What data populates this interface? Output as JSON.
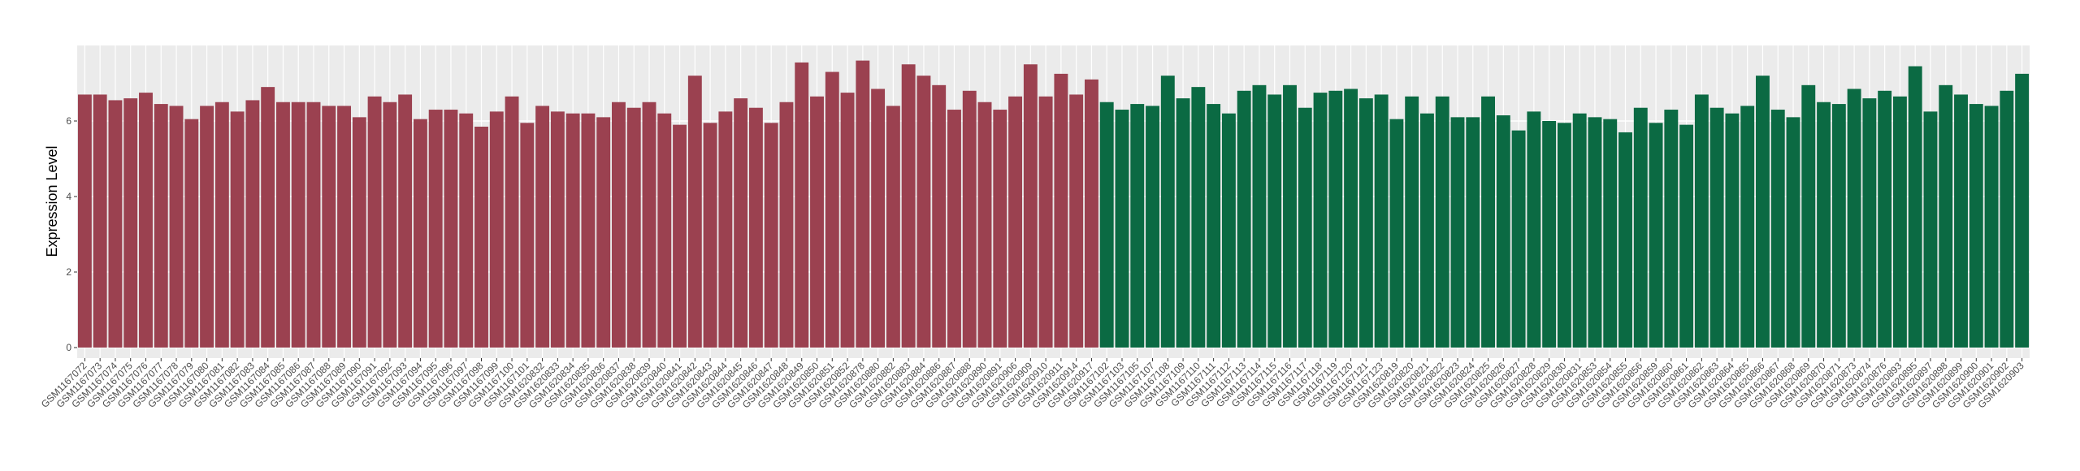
{
  "chart_data": {
    "type": "bar",
    "y_label": "Expression Level",
    "categories": [
      "GSM1167072",
      "GSM1167073",
      "GSM1167074",
      "GSM1167075",
      "GSM1167076",
      "GSM1167077",
      "GSM1167078",
      "GSM1167079",
      "GSM1167080",
      "GSM1167081",
      "GSM1167082",
      "GSM1167083",
      "GSM1167084",
      "GSM1167085",
      "GSM1167086",
      "GSM1167087",
      "GSM1167088",
      "GSM1167089",
      "GSM1167090",
      "GSM1167091",
      "GSM1167092",
      "GSM1167093",
      "GSM1167094",
      "GSM1167095",
      "GSM1167096",
      "GSM1167097",
      "GSM1167098",
      "GSM1167099",
      "GSM1167100",
      "GSM1167101",
      "GSM1620832",
      "GSM1620833",
      "GSM1620834",
      "GSM1620835",
      "GSM1620836",
      "GSM1620837",
      "GSM1620838",
      "GSM1620839",
      "GSM1620840",
      "GSM1620841",
      "GSM1620842",
      "GSM1620843",
      "GSM1620844",
      "GSM1620845",
      "GSM1620846",
      "GSM1620847",
      "GSM1620848",
      "GSM1620849",
      "GSM1620850",
      "GSM1620851",
      "GSM1620852",
      "GSM1620878",
      "GSM1620880",
      "GSM1620882",
      "GSM1620883",
      "GSM1620884",
      "GSM1620886",
      "GSM1620887",
      "GSM1620888",
      "GSM1620890",
      "GSM1620891",
      "GSM1620906",
      "GSM1620909",
      "GSM1620910",
      "GSM1620911",
      "GSM1620914",
      "GSM1620917",
      "GSM1167102",
      "GSM1167103",
      "GSM1167105",
      "GSM1167107",
      "GSM1167108",
      "GSM1167109",
      "GSM1167110",
      "GSM1167111",
      "GSM1167112",
      "GSM1167113",
      "GSM1167114",
      "GSM1167115",
      "GSM1167116",
      "GSM1167117",
      "GSM1167118",
      "GSM1167119",
      "GSM1167120",
      "GSM1167121",
      "GSM1167123",
      "GSM1620819",
      "GSM1620820",
      "GSM1620821",
      "GSM1620822",
      "GSM1620823",
      "GSM1620824",
      "GSM1620825",
      "GSM1620826",
      "GSM1620827",
      "GSM1620828",
      "GSM1620829",
      "GSM1620830",
      "GSM1620831",
      "GSM1620853",
      "GSM1620854",
      "GSM1620855",
      "GSM1620856",
      "GSM1620859",
      "GSM1620860",
      "GSM1620861",
      "GSM1620862",
      "GSM1620863",
      "GSM1620864",
      "GSM1620865",
      "GSM1620866",
      "GSM1620867",
      "GSM1620868",
      "GSM1620869",
      "GSM1620870",
      "GSM1620871",
      "GSM1620873",
      "GSM1620874",
      "GSM1620876",
      "GSM1620893",
      "GSM1620895",
      "GSM1620897",
      "GSM1620898",
      "GSM1620899",
      "GSM1620900",
      "GSM1620901",
      "GSM1620902",
      "GSM1620903"
    ],
    "series": [
      {
        "color": "#9b4150",
        "values": [
          6.7,
          6.7,
          6.55,
          6.6,
          6.75,
          6.45,
          6.4,
          6.05,
          6.4,
          6.5,
          6.25,
          6.55,
          6.9,
          6.5,
          6.5,
          6.5,
          6.4,
          6.4,
          6.1,
          6.65,
          6.5,
          6.7,
          6.05,
          6.3,
          6.3,
          6.2,
          5.85,
          6.25,
          6.65,
          5.95,
          6.4,
          6.25,
          6.2,
          6.2,
          6.1,
          6.5,
          6.35,
          6.5,
          6.2,
          5.9,
          7.2,
          5.95,
          6.25,
          6.6,
          6.35,
          5.95,
          6.5,
          7.55,
          6.65,
          7.3,
          6.75,
          7.6,
          6.85,
          6.4,
          7.5,
          7.2,
          6.95,
          6.3,
          6.8,
          6.5,
          6.3,
          6.65,
          7.5,
          6.65,
          7.25,
          6.7,
          7.1,
          null,
          null,
          null,
          null,
          null,
          null,
          null,
          null,
          null,
          null,
          null,
          null,
          null,
          null,
          null,
          null,
          null,
          null,
          null,
          null,
          null,
          null,
          null,
          null,
          null,
          null,
          null,
          null,
          null,
          null,
          null,
          null,
          null,
          null,
          null,
          null,
          null,
          null,
          null,
          null,
          null,
          null,
          null,
          null,
          null,
          null,
          null,
          null,
          null,
          null,
          null,
          null,
          null,
          null,
          null,
          null,
          null,
          null,
          null,
          null,
          null
        ]
      },
      {
        "color": "#0b6a43",
        "values": [
          null,
          null,
          null,
          null,
          null,
          null,
          null,
          null,
          null,
          null,
          null,
          null,
          null,
          null,
          null,
          null,
          null,
          null,
          null,
          null,
          null,
          null,
          null,
          null,
          null,
          null,
          null,
          null,
          null,
          null,
          null,
          null,
          null,
          null,
          null,
          null,
          null,
          null,
          null,
          null,
          null,
          null,
          null,
          null,
          null,
          null,
          null,
          null,
          null,
          null,
          null,
          null,
          null,
          null,
          null,
          null,
          null,
          null,
          null,
          null,
          null,
          null,
          null,
          null,
          null,
          null,
          null,
          6.5,
          6.3,
          6.45,
          6.4,
          7.2,
          6.6,
          6.9,
          6.45,
          6.2,
          6.8,
          6.95,
          6.7,
          6.95,
          6.35,
          6.75,
          6.8,
          6.85,
          6.6,
          6.7,
          6.05,
          6.65,
          6.2,
          6.65,
          6.1,
          6.1,
          6.65,
          6.15,
          5.75,
          6.25,
          6.0,
          5.95,
          6.2,
          6.1,
          6.05,
          5.7,
          6.35,
          5.95,
          6.3,
          5.9,
          6.7,
          6.35,
          6.2,
          6.4,
          7.2,
          6.3,
          6.1,
          6.95,
          6.5,
          6.45,
          6.85,
          6.6,
          6.8,
          6.65,
          7.45,
          6.25,
          6.95,
          6.7,
          6.45,
          6.4,
          6.8,
          7.25
        ]
      }
    ],
    "ylim": [
      -0.28,
      8.0
    ],
    "yticks": [
      0,
      2,
      4,
      6
    ],
    "grid": true
  }
}
